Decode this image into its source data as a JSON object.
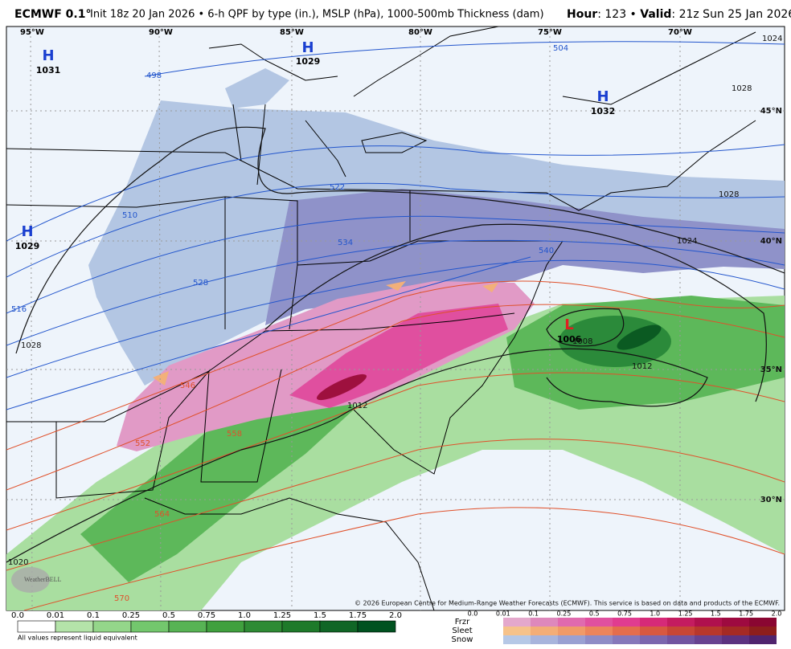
{
  "header": {
    "title": "ECMWF 0.1°",
    "subtitle": "Init 18z 20 Jan 2026 • 6-h QPF by type (in.), MSLP (hPa), 1000-500mb Thickness (dam)",
    "hour_label": "Hour",
    "hour": ": 123 • ",
    "valid_label": "Valid",
    "valid": ": 21z Sun 25 Jan 2026"
  },
  "map": {
    "longitudes": [
      "95°W",
      "90°W",
      "85°W",
      "80°W",
      "75°W",
      "70°W"
    ],
    "latitudes": [
      "45°N",
      "40°N",
      "35°N",
      "30°N"
    ],
    "pressure_centers": [
      {
        "type": "H",
        "value": "1031"
      },
      {
        "type": "H",
        "value": "1029"
      },
      {
        "type": "H",
        "value": "1032"
      },
      {
        "type": "H",
        "value": "1029"
      },
      {
        "type": "L",
        "value": "1006"
      }
    ],
    "thickness_labels": [
      "504",
      "498",
      "510",
      "516",
      "522",
      "534",
      "528",
      "540",
      "546",
      "552",
      "558",
      "564",
      "570"
    ],
    "isobar_labels": [
      "1028",
      "1024",
      "1028",
      "1012",
      "1012",
      "1008",
      "1020",
      "1024",
      "1028"
    ],
    "logo": "WeatherBELL",
    "copyright": "© 2026 European Centre for Medium-Range Weather Forecasts (ECMWF). This service is based on data and products of the ECMWF."
  },
  "legend": {
    "rain_ticks": [
      "0.0",
      "0.01",
      "0.1",
      "0.25",
      "0.5",
      "0.75",
      "1.0",
      "1.25",
      "1.5",
      "1.75",
      "2.0"
    ],
    "note": "All values represent liquid equivalent",
    "types": [
      "Frzr",
      "Sleet",
      "Snow"
    ],
    "type_ticks": [
      "0.0",
      "0.01",
      "0.1",
      "0.25",
      "0.5",
      "0.75",
      "1.0",
      "1.25",
      "1.5",
      "1.75",
      "2.0"
    ]
  }
}
